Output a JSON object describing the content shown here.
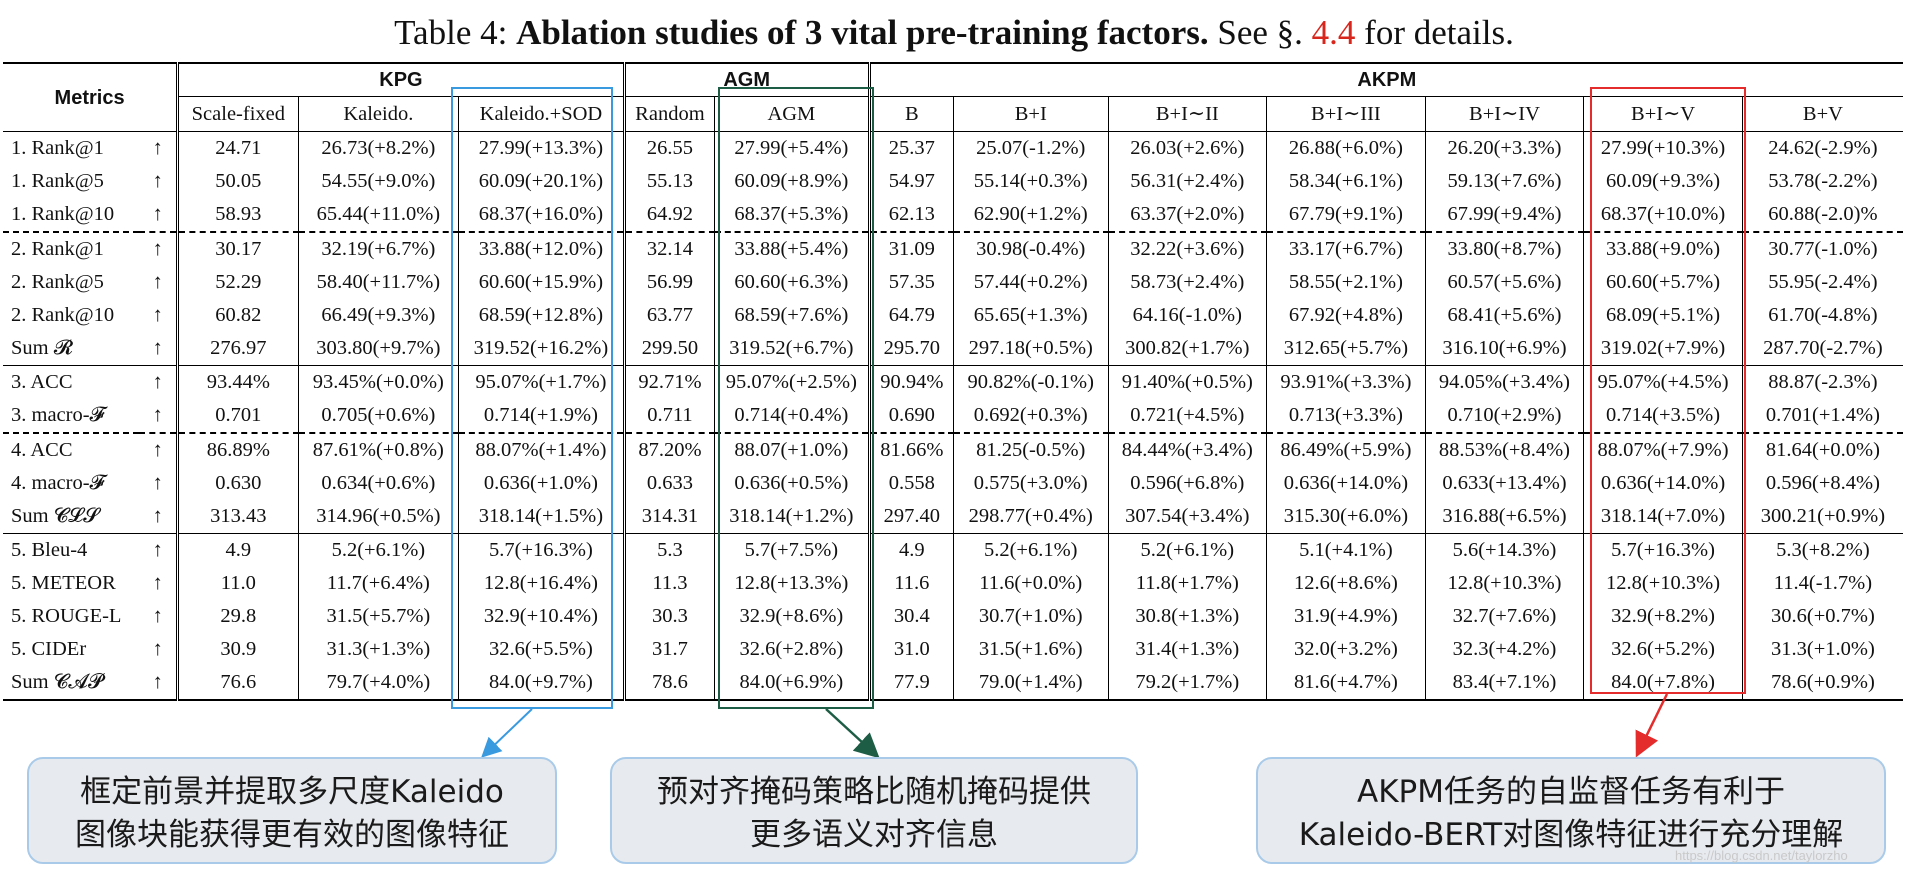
{
  "title": {
    "label": "Table 4:",
    "bold": "Ablation studies of 3 vital pre-training factors.",
    "see": "See §.",
    "ref": "4.4",
    "tail": "for details."
  },
  "table": {
    "metrics_header": "Metrics",
    "groups": [
      "KPG",
      "AGM",
      "AKPM"
    ],
    "columns": [
      "Scale-fixed",
      "Kaleido.",
      "Kaleido.+SOD",
      "Random",
      "AGM",
      "B",
      "B+I",
      "B+I∼II",
      "B+I∼III",
      "B+I∼IV",
      "B+I∼V",
      "B+V"
    ],
    "arrow": "↑",
    "rows": [
      {
        "label": "1. Rank@1",
        "cells": [
          "24.71",
          "26.73(+8.2%)",
          "27.99(+13.3%)",
          "26.55",
          "27.99(+5.4%)",
          "25.37",
          "25.07(-1.2%)",
          "26.03(+2.6%)",
          "26.88(+6.0%)",
          "26.20(+3.3%)",
          "27.99(+10.3%)",
          "24.62(-2.9%)"
        ]
      },
      {
        "label": "1. Rank@5",
        "cells": [
          "50.05",
          "54.55(+9.0%)",
          "60.09(+20.1%)",
          "55.13",
          "60.09(+8.9%)",
          "54.97",
          "55.14(+0.3%)",
          "56.31(+2.4%)",
          "58.34(+6.1%)",
          "59.13(+7.6%)",
          "60.09(+9.3%)",
          "53.78(-2.2%)"
        ]
      },
      {
        "label": "1. Rank@10",
        "cells": [
          "58.93",
          "65.44(+11.0%)",
          "68.37(+16.0%)",
          "64.92",
          "68.37(+5.3%)",
          "62.13",
          "62.90(+1.2%)",
          "63.37(+2.0%)",
          "67.79(+9.1%)",
          "67.99(+9.4%)",
          "68.37(+10.0%)",
          "60.88(-2.0)%"
        ]
      },
      {
        "label": "2. Rank@1",
        "cells": [
          "30.17",
          "32.19(+6.7%)",
          "33.88(+12.0%)",
          "32.14",
          "33.88(+5.4%)",
          "31.09",
          "30.98(-0.4%)",
          "32.22(+3.6%)",
          "33.17(+6.7%)",
          "33.80(+8.7%)",
          "33.88(+9.0%)",
          "30.77(-1.0%)"
        ]
      },
      {
        "label": "2. Rank@5",
        "cells": [
          "52.29",
          "58.40(+11.7%)",
          "60.60(+15.9%)",
          "56.99",
          "60.60(+6.3%)",
          "57.35",
          "57.44(+0.2%)",
          "58.73(+2.4%)",
          "58.55(+2.1%)",
          "60.57(+5.6%)",
          "60.60(+5.7%)",
          "55.95(-2.4%)"
        ]
      },
      {
        "label": "2. Rank@10",
        "cells": [
          "60.82",
          "66.49(+9.3%)",
          "68.59(+12.8%)",
          "63.77",
          "68.59(+7.6%)",
          "64.79",
          "65.65(+1.3%)",
          "64.16(-1.0%)",
          "67.92(+4.8%)",
          "68.41(+5.6%)",
          "68.09(+5.1%)",
          "61.70(-4.8%)"
        ]
      },
      {
        "label": "Sum 𝓡",
        "cells": [
          "276.97",
          "303.80(+9.7%)",
          "319.52(+16.2%)",
          "299.50",
          "319.52(+6.7%)",
          "295.70",
          "297.18(+0.5%)",
          "300.82(+1.7%)",
          "312.65(+5.7%)",
          "316.10(+6.9%)",
          "319.02(+7.9%)",
          "287.70(-2.7%)"
        ]
      },
      {
        "label": "3. ACC",
        "cells": [
          "93.44%",
          "93.45%(+0.0%)",
          "95.07%(+1.7%)",
          "92.71%",
          "95.07%(+2.5%)",
          "90.94%",
          "90.82%(-0.1%)",
          "91.40%(+0.5%)",
          "93.91%(+3.3%)",
          "94.05%(+3.4%)",
          "95.07%(+4.5%)",
          "88.87(-2.3%)"
        ]
      },
      {
        "label": "3. macro-𝓕",
        "cells": [
          "0.701",
          "0.705(+0.6%)",
          "0.714(+1.9%)",
          "0.711",
          "0.714(+0.4%)",
          "0.690",
          "0.692(+0.3%)",
          "0.721(+4.5%)",
          "0.713(+3.3%)",
          "0.710(+2.9%)",
          "0.714(+3.5%)",
          "0.701(+1.4%)"
        ]
      },
      {
        "label": "4. ACC",
        "cells": [
          "86.89%",
          "87.61%(+0.8%)",
          "88.07%(+1.4%)",
          "87.20%",
          "88.07(+1.0%)",
          "81.66%",
          "81.25(-0.5%)",
          "84.44%(+3.4%)",
          "86.49%(+5.9%)",
          "88.53%(+8.4%)",
          "88.07%(+7.9%)",
          "81.64(+0.0%)"
        ]
      },
      {
        "label": "4. macro-𝓕",
        "cells": [
          "0.630",
          "0.634(+0.6%)",
          "0.636(+1.0%)",
          "0.633",
          "0.636(+0.5%)",
          "0.558",
          "0.575(+3.0%)",
          "0.596(+6.8%)",
          "0.636(+14.0%)",
          "0.633(+13.4%)",
          "0.636(+14.0%)",
          "0.596(+8.4%)"
        ]
      },
      {
        "label": "Sum 𝓒𝓛𝓢",
        "cells": [
          "313.43",
          "314.96(+0.5%)",
          "318.14(+1.5%)",
          "314.31",
          "318.14(+1.2%)",
          "297.40",
          "298.77(+0.4%)",
          "307.54(+3.4%)",
          "315.30(+6.0%)",
          "316.88(+6.5%)",
          "318.14(+7.0%)",
          "300.21(+0.9%)"
        ]
      },
      {
        "label": "5. Bleu-4",
        "cells": [
          "4.9",
          "5.2(+6.1%)",
          "5.7(+16.3%)",
          "5.3",
          "5.7(+7.5%)",
          "4.9",
          "5.2(+6.1%)",
          "5.2(+6.1%)",
          "5.1(+4.1%)",
          "5.6(+14.3%)",
          "5.7(+16.3%)",
          "5.3(+8.2%)"
        ]
      },
      {
        "label": "5. METEOR",
        "cells": [
          "11.0",
          "11.7(+6.4%)",
          "12.8(+16.4%)",
          "11.3",
          "12.8(+13.3%)",
          "11.6",
          "11.6(+0.0%)",
          "11.8(+1.7%)",
          "12.6(+8.6%)",
          "12.8(+10.3%)",
          "12.8(+10.3%)",
          "11.4(-1.7%)"
        ]
      },
      {
        "label": "5. ROUGE-L",
        "cells": [
          "29.8",
          "31.5(+5.7%)",
          "32.9(+10.4%)",
          "30.3",
          "32.9(+8.6%)",
          "30.4",
          "30.7(+1.0%)",
          "30.8(+1.3%)",
          "31.9(+4.9%)",
          "32.7(+7.6%)",
          "32.9(+8.2%)",
          "30.6(+0.7%)"
        ]
      },
      {
        "label": "5. CIDEr",
        "cells": [
          "30.9",
          "31.3(+1.3%)",
          "32.6(+5.5%)",
          "31.7",
          "32.6(+2.8%)",
          "31.0",
          "31.5(+1.6%)",
          "31.4(+1.3%)",
          "32.0(+3.2%)",
          "32.3(+4.2%)",
          "32.6(+5.2%)",
          "31.3(+1.0%)"
        ]
      },
      {
        "label": "Sum 𝓒𝓐𝓟",
        "cells": [
          "76.6",
          "79.7(+4.0%)",
          "84.0(+9.7%)",
          "78.6",
          "84.0(+6.9%)",
          "77.9",
          "79.0(+1.4%)",
          "79.2(+1.7%)",
          "81.6(+4.7%)",
          "83.4(+7.1%)",
          "84.0(+7.8%)",
          "78.6(+0.9%)"
        ]
      }
    ]
  },
  "callouts": {
    "left": [
      "框定前景并提取多尺度Kaleido",
      "图像块能获得更有效的图像特征"
    ],
    "mid": [
      "预对齐掩码策略比随机掩码提供",
      "更多语义对齐信息"
    ],
    "right": [
      "AKPM任务的自监督任务有利于",
      "Kaleido-BERT对图像特征进行充分理解"
    ]
  },
  "colors": {
    "kaleido_box": "#3a9ae0",
    "agm_box": "#1d5d46",
    "bv_box": "#e42c2c",
    "callout_bg": "#e7eaef",
    "ref": "#d9261c"
  },
  "watermark": "https://blog.csdn.net/taylorzho"
}
